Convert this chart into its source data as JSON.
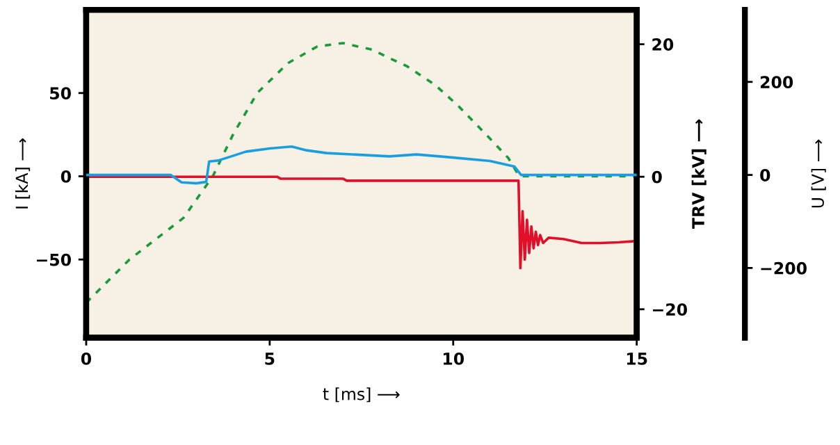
{
  "chart_data": {
    "type": "line",
    "xlabel": "t [ms] ⟶",
    "ylabel": "I [kA] ⟶",
    "y2label": "TRV [kV] ⟶",
    "y3label": "U [V] ⟶",
    "xlim": [
      0,
      15
    ],
    "xticks": [
      0,
      5,
      10,
      15
    ],
    "ylim": [
      -97,
      100
    ],
    "yticks": [
      -50,
      0,
      50
    ],
    "y2lim": [
      -24.3,
      25.2
    ],
    "y2ticks": [
      -20,
      0,
      20
    ],
    "y3lim": [
      -350,
      355
    ],
    "y3ticks": [
      -200,
      0,
      200
    ],
    "grid": false,
    "series": [
      {
        "color": "#1a9a3a",
        "line_style": "dashed",
        "x": [
          0,
          1.18,
          2.65,
          3.45,
          4.0,
          4.66,
          5.5,
          6.3,
          7.0,
          7.8,
          8.26,
          8.75,
          9.5,
          10.15,
          10.9,
          11.5,
          11.8,
          15
        ],
        "values": [
          -76,
          -50,
          -25,
          0,
          25,
          50,
          68,
          78,
          80,
          76,
          71,
          66,
          55,
          42,
          25,
          11,
          0,
          0
        ]
      },
      {
        "color": "#1a9ee0",
        "axis": "y3",
        "line_style": "solid",
        "x": [
          0,
          2.3,
          2.6,
          3.0,
          3.27,
          3.35,
          3.6,
          4.35,
          5.0,
          5.6,
          6.0,
          6.55,
          8.26,
          9.0,
          9.9,
          11.0,
          11.67,
          11.85,
          15
        ],
        "values": [
          0,
          0,
          -16,
          -18,
          -15,
          29,
          31,
          50,
          57,
          61,
          53,
          47,
          40,
          44,
          38,
          30,
          18,
          0,
          0
        ]
      },
      {
        "color": "#e0102a",
        "axis": "y2",
        "line_style": "solid",
        "x": [
          0,
          5.2,
          5.3,
          7.0,
          7.1,
          11.78,
          11.83,
          11.89,
          11.95,
          12.01,
          12.07,
          12.13,
          12.19,
          12.25,
          12.31,
          12.37,
          12.45,
          12.6,
          13.0,
          13.5,
          14.0,
          14.5,
          15
        ],
        "values": [
          0,
          0,
          -0.3,
          -0.3,
          -0.6,
          -0.6,
          -13.8,
          -5.2,
          -12.5,
          -6.5,
          -11.5,
          -7.5,
          -10.8,
          -8.3,
          -10.3,
          -8.8,
          -10,
          -9.2,
          -9.4,
          -10,
          -10,
          -9.9,
          -9.7
        ]
      }
    ]
  }
}
